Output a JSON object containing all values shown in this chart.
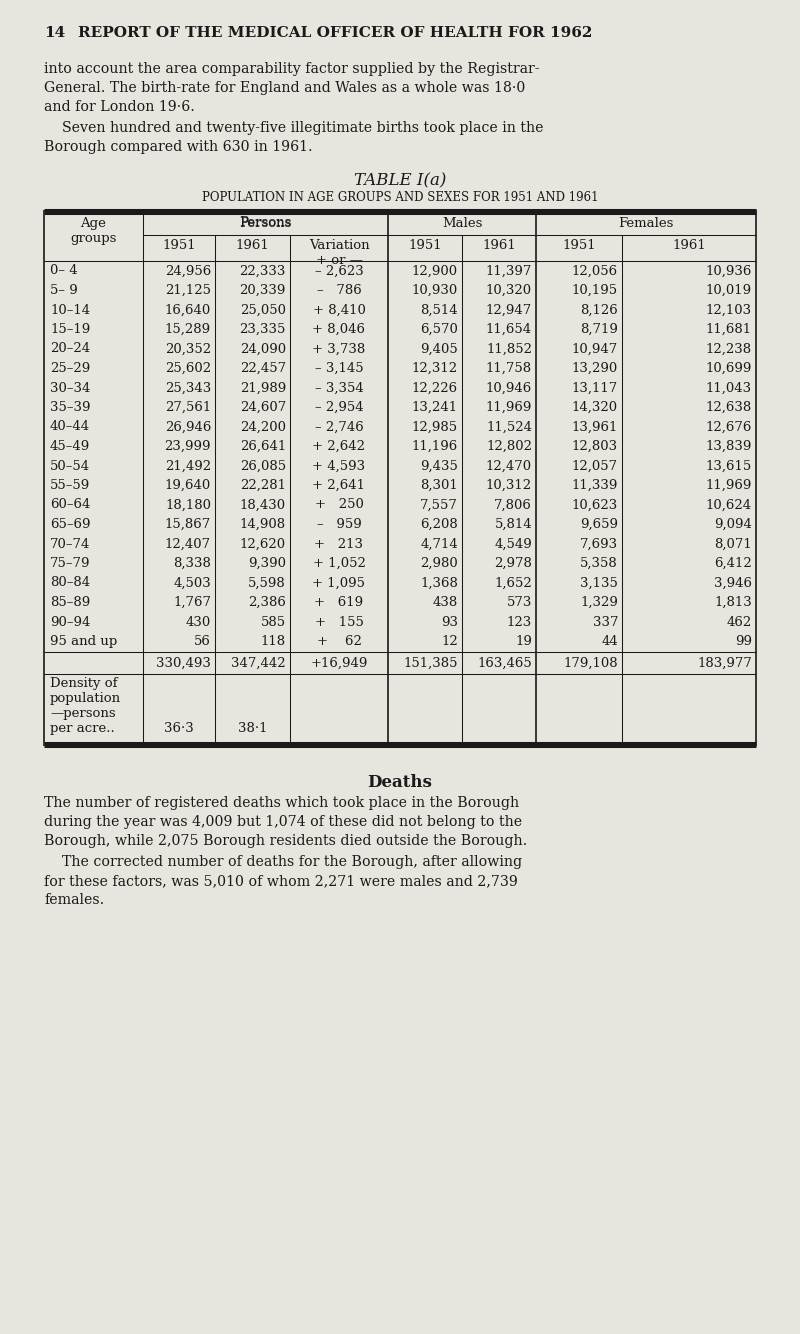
{
  "page_num": "14",
  "header": "REPORT OF THE MEDICAL OFFICER OF HEALTH FOR 1962",
  "para1_lines": [
    "into account the area comparability factor supplied by the Registrar-",
    "General. The birth-rate for England and Wales as a whole was 18·0",
    "and for London 19·6."
  ],
  "para2_lines": [
    "    Seven hundred and twenty-five illegitimate births took place in the",
    "Borough compared with 630 in 1961."
  ],
  "table_title": "TABLE I(a)",
  "table_subtitle": "POPULATION IN AGE GROUPS AND SEXES FOR 1951 AND 1961",
  "age_groups": [
    "0– 4",
    "5– 9",
    "10–14",
    "15–19",
    "20–24",
    "25–29",
    "30–34",
    "35–39",
    "40–44",
    "45–49",
    "50–54",
    "55–59",
    "60–64",
    "65–69",
    "70–74",
    "75–79",
    "80–84",
    "85–89",
    "90–94",
    "95 and up"
  ],
  "persons_1951": [
    "24,956",
    "21,125",
    "16,640",
    "15,289",
    "20,352",
    "25,602",
    "25,343",
    "27,561",
    "26,946",
    "23,999",
    "21,492",
    "19,640",
    "18,180",
    "15,867",
    "12,407",
    "8,338",
    "4,503",
    "1,767",
    "430",
    "56"
  ],
  "persons_1961": [
    "22,333",
    "20,339",
    "25,050",
    "23,335",
    "24,090",
    "22,457",
    "21,989",
    "24,607",
    "24,200",
    "26,641",
    "26,085",
    "22,281",
    "18,430",
    "14,908",
    "12,620",
    "9,390",
    "5,598",
    "2,386",
    "585",
    "118"
  ],
  "variation": [
    "– 2,623",
    "–   786",
    "+ 8,410",
    "+ 8,046",
    "+ 3,738",
    "– 3,145",
    "– 3,354",
    "– 2,954",
    "– 2,746",
    "+ 2,642",
    "+ 4,593",
    "+ 2,641",
    "+   250",
    "–   959",
    "+   213",
    "+ 1,052",
    "+ 1,095",
    "+   619",
    "+   155",
    "+    62"
  ],
  "males_1951": [
    "12,900",
    "10,930",
    "8,514",
    "6,570",
    "9,405",
    "12,312",
    "12,226",
    "13,241",
    "12,985",
    "11,196",
    "9,435",
    "8,301",
    "7,557",
    "6,208",
    "4,714",
    "2,980",
    "1,368",
    "438",
    "93",
    "12"
  ],
  "males_1961": [
    "11,397",
    "10,320",
    "12,947",
    "11,654",
    "11,852",
    "11,758",
    "10,946",
    "11,969",
    "11,524",
    "12,802",
    "12,470",
    "10,312",
    "7,806",
    "5,814",
    "4,549",
    "2,978",
    "1,652",
    "573",
    "123",
    "19"
  ],
  "females_1951": [
    "12,056",
    "10,195",
    "8,126",
    "8,719",
    "10,947",
    "13,290",
    "13,117",
    "14,320",
    "13,961",
    "12,803",
    "12,057",
    "11,339",
    "10,623",
    "9,659",
    "7,693",
    "5,358",
    "3,135",
    "1,329",
    "337",
    "44"
  ],
  "females_1961": [
    "10,936",
    "10,019",
    "12,103",
    "11,681",
    "12,238",
    "10,699",
    "11,043",
    "12,638",
    "12,676",
    "13,839",
    "13,615",
    "11,969",
    "10,624",
    "9,094",
    "8,071",
    "6,412",
    "3,946",
    "1,813",
    "462",
    "99"
  ],
  "totals": [
    "330,493",
    "347,442",
    "+16,949",
    "151,385",
    "163,465",
    "179,108",
    "183,977"
  ],
  "density_label_lines": [
    "Density of",
    "population",
    "—persons",
    "per acre.."
  ],
  "density_1951": "36·3",
  "density_1961": "38·1",
  "deaths_heading": "Deaths",
  "deaths_para1_lines": [
    "The number of registered deaths which took place in the Borough",
    "during the year was 4,009 but 1,074 of these did not belong to the",
    "Borough, while 2,075 Borough residents died outside the Borough."
  ],
  "deaths_para2_lines": [
    "    The corrected number of deaths for the Borough, after allowing",
    "for these factors, was 5,010 of whom 2,271 were males and 2,739",
    "females."
  ],
  "bg_color": "#e8e4de",
  "text_color": "#1a1a1a",
  "line_color": "#1a1a1a"
}
